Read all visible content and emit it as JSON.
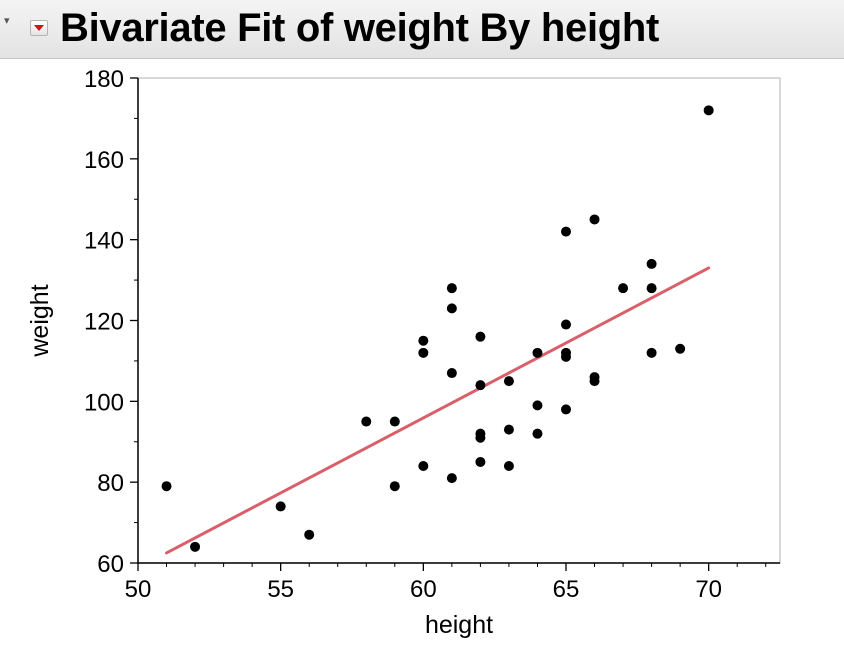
{
  "header": {
    "title": "Bivariate Fit of weight By height",
    "menu_icon": "red-triangle-menu-icon",
    "collapse_icon": "disclosure-triangle-icon"
  },
  "chart_data": {
    "type": "scatter",
    "title": "Bivariate Fit of weight By height",
    "xlabel": "height",
    "ylabel": "weight",
    "xlim": [
      50,
      72.5
    ],
    "ylim": [
      60,
      180
    ],
    "xticks": [
      50,
      55,
      60,
      65,
      70
    ],
    "yticks": [
      60,
      80,
      100,
      120,
      140,
      160,
      180
    ],
    "grid": false,
    "point_color": "#000000",
    "points": [
      {
        "x": 51,
        "y": 79
      },
      {
        "x": 52,
        "y": 64
      },
      {
        "x": 55,
        "y": 74
      },
      {
        "x": 56,
        "y": 67
      },
      {
        "x": 58,
        "y": 95
      },
      {
        "x": 59,
        "y": 95
      },
      {
        "x": 59,
        "y": 79
      },
      {
        "x": 60,
        "y": 115
      },
      {
        "x": 60,
        "y": 112
      },
      {
        "x": 60,
        "y": 84
      },
      {
        "x": 61,
        "y": 128
      },
      {
        "x": 61,
        "y": 123
      },
      {
        "x": 61,
        "y": 107
      },
      {
        "x": 61,
        "y": 81
      },
      {
        "x": 62,
        "y": 116
      },
      {
        "x": 62,
        "y": 104
      },
      {
        "x": 62,
        "y": 92
      },
      {
        "x": 62,
        "y": 91
      },
      {
        "x": 62,
        "y": 85
      },
      {
        "x": 63,
        "y": 105
      },
      {
        "x": 63,
        "y": 93
      },
      {
        "x": 63,
        "y": 84
      },
      {
        "x": 64,
        "y": 112
      },
      {
        "x": 64,
        "y": 99
      },
      {
        "x": 64,
        "y": 92
      },
      {
        "x": 65,
        "y": 142
      },
      {
        "x": 65,
        "y": 119
      },
      {
        "x": 65,
        "y": 112
      },
      {
        "x": 65,
        "y": 111
      },
      {
        "x": 65,
        "y": 98
      },
      {
        "x": 66,
        "y": 145
      },
      {
        "x": 66,
        "y": 106
      },
      {
        "x": 66,
        "y": 105
      },
      {
        "x": 67,
        "y": 128
      },
      {
        "x": 68,
        "y": 134
      },
      {
        "x": 68,
        "y": 128
      },
      {
        "x": 68,
        "y": 112
      },
      {
        "x": 69,
        "y": 113
      },
      {
        "x": 70,
        "y": 172
      }
    ],
    "fit_line": {
      "type": "linear",
      "color": "#d9606a",
      "from": {
        "x": 51,
        "y": 62.5
      },
      "to": {
        "x": 70,
        "y": 133
      }
    }
  }
}
